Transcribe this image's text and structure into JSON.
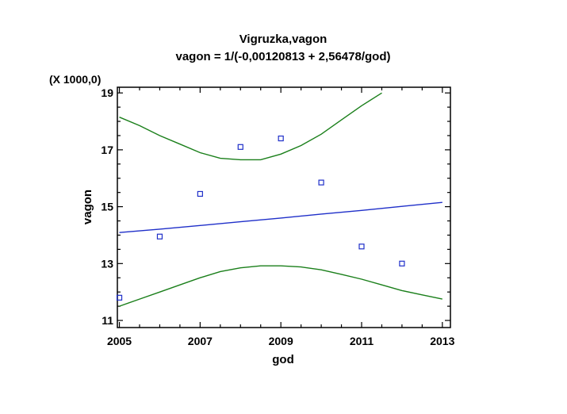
{
  "chart_data": {
    "type": "scatter",
    "title": "Vigruzka,vagon",
    "subtitle": "vagon = 1/(-0,00120813 + 2,56478/god)",
    "xlabel": "god",
    "ylabel": "vagon",
    "y_scale_note": "(X 1000,0)",
    "xlim": [
      2004.95,
      2013.2
    ],
    "ylim": [
      10.75,
      19.2
    ],
    "x_ticks": [
      2005,
      2007,
      2009,
      2011,
      2013
    ],
    "x_tick_labels": [
      "2005",
      "2007",
      "2009",
      "2011",
      "2013"
    ],
    "y_ticks": [
      11,
      13,
      15,
      17,
      19
    ],
    "y_tick_labels": [
      "11",
      "13",
      "15",
      "17",
      "19"
    ],
    "grid": false,
    "colors": {
      "points": "#1f2fc9",
      "fit": "#1f2fc9",
      "bands": "#1a7f1a"
    },
    "points": {
      "x": [
        2005,
        2006,
        2007,
        2008,
        2009,
        2010,
        2011,
        2012
      ],
      "y": [
        11.8,
        13.95,
        15.45,
        17.1,
        17.4,
        15.85,
        13.6,
        13.0
      ]
    },
    "fit_line": {
      "x": [
        2005,
        2006,
        2007,
        2008,
        2009,
        2010,
        2011,
        2012,
        2013
      ],
      "y": [
        14.09,
        14.21,
        14.34,
        14.47,
        14.6,
        14.74,
        14.87,
        15.01,
        15.15
      ]
    },
    "upper_band": {
      "x": [
        2005,
        2005.5,
        2006,
        2006.5,
        2007,
        2007.5,
        2008,
        2008.5,
        2009,
        2009.5,
        2010,
        2010.5,
        2011,
        2011.5
      ],
      "y": [
        18.15,
        17.85,
        17.5,
        17.2,
        16.9,
        16.7,
        16.65,
        16.65,
        16.85,
        17.15,
        17.55,
        18.05,
        18.55,
        19.0
      ]
    },
    "lower_band": {
      "x": [
        2005,
        2005.5,
        2006,
        2006.5,
        2007,
        2007.5,
        2008,
        2008.5,
        2009,
        2009.5,
        2010,
        2010.5,
        2011,
        2011.5,
        2012,
        2012.5,
        2013
      ],
      "y": [
        11.5,
        11.75,
        12.0,
        12.25,
        12.5,
        12.72,
        12.85,
        12.92,
        12.92,
        12.88,
        12.78,
        12.62,
        12.45,
        12.25,
        12.05,
        11.9,
        11.75
      ]
    }
  }
}
